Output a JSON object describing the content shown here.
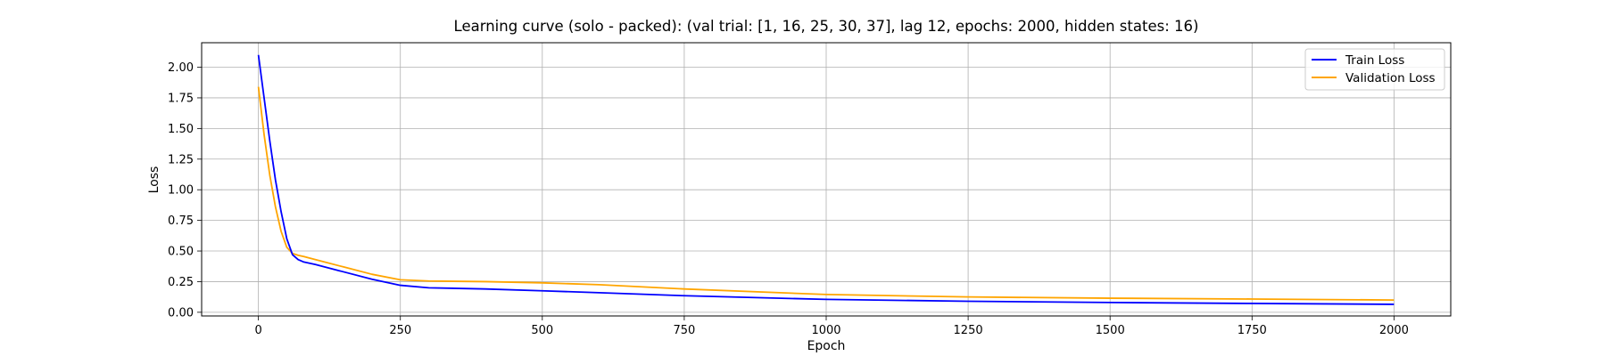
{
  "chart_data": {
    "type": "line",
    "title": "Learning curve (solo - packed): (val trial: [1, 16, 25, 30, 37], lag 12, epochs: 2000, hidden states: 16)",
    "xlabel": "Epoch",
    "ylabel": "Loss",
    "xlim": [
      -100,
      2100
    ],
    "ylim": [
      -0.03,
      2.2
    ],
    "xticks": [
      0,
      250,
      500,
      750,
      1000,
      1250,
      1500,
      1750,
      2000
    ],
    "xtick_labels": [
      "0",
      "250",
      "500",
      "750",
      "1000",
      "1250",
      "1500",
      "1750",
      "2000"
    ],
    "yticks": [
      0.0,
      0.25,
      0.5,
      0.75,
      1.0,
      1.25,
      1.5,
      1.75,
      2.0
    ],
    "ytick_labels": [
      "0.00",
      "0.25",
      "0.50",
      "0.75",
      "1.00",
      "1.25",
      "1.50",
      "1.75",
      "2.00"
    ],
    "grid": true,
    "legend_position": "top-right",
    "series": [
      {
        "name": "Train Loss",
        "color": "#0000ff",
        "x": [
          0,
          10,
          20,
          30,
          40,
          50,
          60,
          70,
          80,
          100,
          150,
          200,
          250,
          300,
          400,
          500,
          600,
          750,
          1000,
          1250,
          1500,
          1750,
          2000
        ],
        "y": [
          2.1,
          1.75,
          1.4,
          1.08,
          0.82,
          0.6,
          0.47,
          0.43,
          0.41,
          0.39,
          0.33,
          0.27,
          0.22,
          0.2,
          0.19,
          0.175,
          0.16,
          0.135,
          0.105,
          0.09,
          0.08,
          0.072,
          0.065
        ]
      },
      {
        "name": "Validation Loss",
        "color": "#ffa500",
        "x": [
          0,
          10,
          20,
          30,
          40,
          50,
          60,
          70,
          80,
          100,
          150,
          200,
          250,
          300,
          400,
          500,
          600,
          750,
          1000,
          1250,
          1500,
          1750,
          2000
        ],
        "y": [
          1.84,
          1.45,
          1.12,
          0.86,
          0.66,
          0.53,
          0.48,
          0.465,
          0.455,
          0.43,
          0.37,
          0.31,
          0.265,
          0.255,
          0.25,
          0.24,
          0.225,
          0.19,
          0.145,
          0.125,
          0.115,
          0.108,
          0.1
        ]
      }
    ]
  }
}
